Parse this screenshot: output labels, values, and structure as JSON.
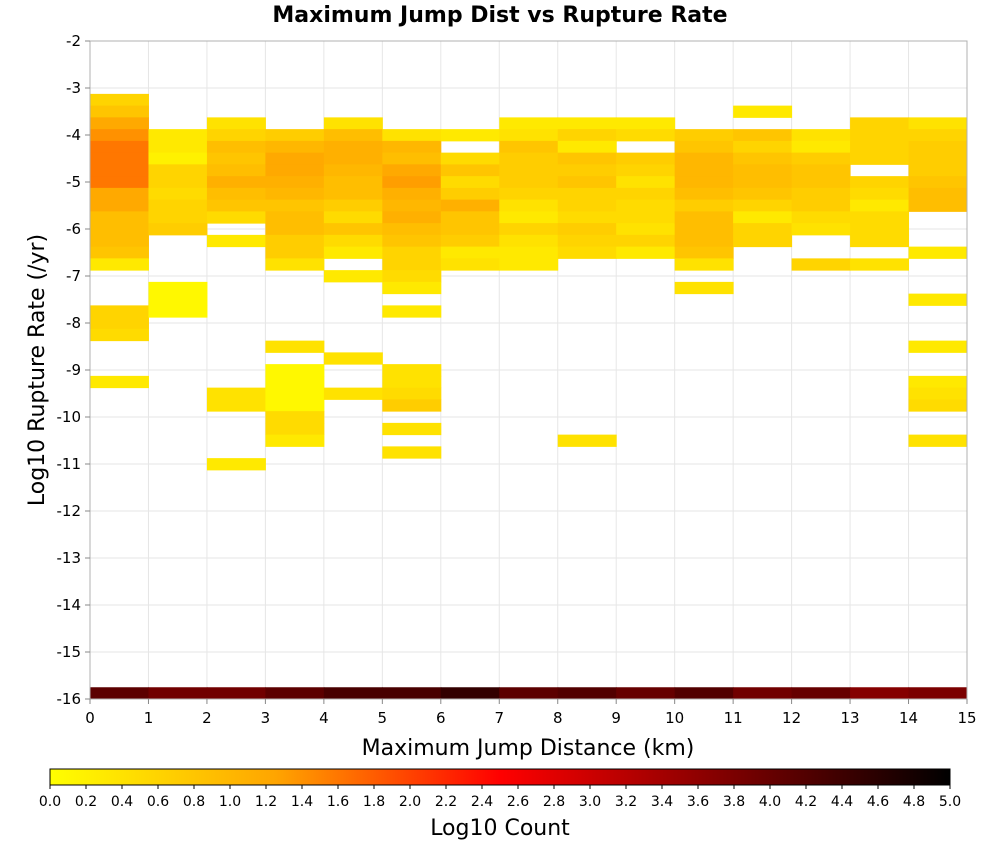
{
  "chart_data": {
    "type": "heatmap",
    "title": "Maximum Jump Dist vs Rupture Rate",
    "xlabel": "Maximum Jump Distance (km)",
    "ylabel": "Log10 Rupture Rate (/yr)",
    "xlim": [
      0,
      15
    ],
    "ylim": [
      -16,
      -2
    ],
    "x_ticks": [
      "0",
      "1",
      "2",
      "3",
      "4",
      "5",
      "6",
      "7",
      "8",
      "9",
      "10",
      "11",
      "12",
      "13",
      "14",
      "15"
    ],
    "y_ticks": [
      "-2",
      "-3",
      "-4",
      "-5",
      "-6",
      "-7",
      "-8",
      "-9",
      "-10",
      "-11",
      "-12",
      "-13",
      "-14",
      "-15",
      "-16"
    ],
    "x_bin_width": 1,
    "y_bin_height": 0.25,
    "grid": true,
    "colorbar": {
      "label": "Log10 Count",
      "range": [
        0,
        5
      ],
      "ticks": [
        "0.0",
        "0.2",
        "0.4",
        "0.6",
        "0.8",
        "1.0",
        "1.2",
        "1.4",
        "1.6",
        "1.8",
        "2.0",
        "2.2",
        "2.4",
        "2.6",
        "2.8",
        "3.0",
        "3.2",
        "3.4",
        "3.6",
        "3.8",
        "4.0",
        "4.2",
        "4.4",
        "4.6",
        "4.8",
        "5.0"
      ],
      "colormap": [
        "#ffff00",
        "#ffa500",
        "#ff0000",
        "#800000",
        "#000000"
      ]
    },
    "cells": [
      {
        "x": 0,
        "y": -3.25,
        "v": 0.6
      },
      {
        "x": 0,
        "y": -3.5,
        "v": 0.8
      },
      {
        "x": 0,
        "y": -3.75,
        "v": 1.2
      },
      {
        "x": 0,
        "y": -4.0,
        "v": 1.4
      },
      {
        "x": 0,
        "y": -4.25,
        "v": 1.6
      },
      {
        "x": 0,
        "y": -4.5,
        "v": 1.6
      },
      {
        "x": 0,
        "y": -4.75,
        "v": 1.6
      },
      {
        "x": 0,
        "y": -5.0,
        "v": 1.6
      },
      {
        "x": 0,
        "y": -5.25,
        "v": 1.2
      },
      {
        "x": 0,
        "y": -5.5,
        "v": 1.2
      },
      {
        "x": 0,
        "y": -5.75,
        "v": 0.9
      },
      {
        "x": 0,
        "y": -6.0,
        "v": 0.9
      },
      {
        "x": 0,
        "y": -6.25,
        "v": 0.9
      },
      {
        "x": 0,
        "y": -6.5,
        "v": 0.8
      },
      {
        "x": 0,
        "y": -6.75,
        "v": 0.3
      },
      {
        "x": 0,
        "y": -7.75,
        "v": 0.6
      },
      {
        "x": 0,
        "y": -8.0,
        "v": 0.6
      },
      {
        "x": 0,
        "y": -8.25,
        "v": 0.5
      },
      {
        "x": 0,
        "y": -9.25,
        "v": 0.3
      },
      {
        "x": 1,
        "y": -4.0,
        "v": 0.3
      },
      {
        "x": 1,
        "y": -4.25,
        "v": 0.3
      },
      {
        "x": 1,
        "y": -4.5,
        "v": 0.2
      },
      {
        "x": 1,
        "y": -4.75,
        "v": 0.6
      },
      {
        "x": 1,
        "y": -5.0,
        "v": 0.6
      },
      {
        "x": 1,
        "y": -5.25,
        "v": 0.5
      },
      {
        "x": 1,
        "y": -5.5,
        "v": 0.6
      },
      {
        "x": 1,
        "y": -5.75,
        "v": 0.6
      },
      {
        "x": 1,
        "y": -6.0,
        "v": 0.7
      },
      {
        "x": 1,
        "y": -7.25,
        "v": 0.1
      },
      {
        "x": 1,
        "y": -7.5,
        "v": 0.1
      },
      {
        "x": 1,
        "y": -7.75,
        "v": 0.1
      },
      {
        "x": 2,
        "y": -3.75,
        "v": 0.4
      },
      {
        "x": 2,
        "y": -4.0,
        "v": 0.6
      },
      {
        "x": 2,
        "y": -4.25,
        "v": 0.9
      },
      {
        "x": 2,
        "y": -4.5,
        "v": 0.8
      },
      {
        "x": 2,
        "y": -4.75,
        "v": 0.9
      },
      {
        "x": 2,
        "y": -5.0,
        "v": 1.1
      },
      {
        "x": 2,
        "y": -5.25,
        "v": 0.9
      },
      {
        "x": 2,
        "y": -5.5,
        "v": 0.8
      },
      {
        "x": 2,
        "y": -5.75,
        "v": 0.5
      },
      {
        "x": 2,
        "y": -6.25,
        "v": 0.3
      },
      {
        "x": 2,
        "y": -9.5,
        "v": 0.4
      },
      {
        "x": 2,
        "y": -9.75,
        "v": 0.4
      },
      {
        "x": 2,
        "y": -11.0,
        "v": 0.3
      },
      {
        "x": 3,
        "y": -4.0,
        "v": 0.7
      },
      {
        "x": 3,
        "y": -4.25,
        "v": 1.0
      },
      {
        "x": 3,
        "y": -4.5,
        "v": 1.2
      },
      {
        "x": 3,
        "y": -4.75,
        "v": 1.2
      },
      {
        "x": 3,
        "y": -5.0,
        "v": 1.1
      },
      {
        "x": 3,
        "y": -5.25,
        "v": 1.0
      },
      {
        "x": 3,
        "y": -5.5,
        "v": 0.8
      },
      {
        "x": 3,
        "y": -5.75,
        "v": 0.9
      },
      {
        "x": 3,
        "y": -6.0,
        "v": 0.9
      },
      {
        "x": 3,
        "y": -6.25,
        "v": 0.7
      },
      {
        "x": 3,
        "y": -6.5,
        "v": 0.7
      },
      {
        "x": 3,
        "y": -6.75,
        "v": 0.4
      },
      {
        "x": 3,
        "y": -8.5,
        "v": 0.4
      },
      {
        "x": 3,
        "y": -9.0,
        "v": 0.1
      },
      {
        "x": 3,
        "y": -9.25,
        "v": 0.1
      },
      {
        "x": 3,
        "y": -9.5,
        "v": 0.1
      },
      {
        "x": 3,
        "y": -9.75,
        "v": 0.1
      },
      {
        "x": 3,
        "y": -10.0,
        "v": 0.5
      },
      {
        "x": 3,
        "y": -10.25,
        "v": 0.5
      },
      {
        "x": 3,
        "y": -10.5,
        "v": 0.3
      },
      {
        "x": 4,
        "y": -3.75,
        "v": 0.4
      },
      {
        "x": 4,
        "y": -4.0,
        "v": 0.9
      },
      {
        "x": 4,
        "y": -4.25,
        "v": 1.1
      },
      {
        "x": 4,
        "y": -4.5,
        "v": 1.1
      },
      {
        "x": 4,
        "y": -4.75,
        "v": 1.0
      },
      {
        "x": 4,
        "y": -5.0,
        "v": 0.9
      },
      {
        "x": 4,
        "y": -5.25,
        "v": 0.9
      },
      {
        "x": 4,
        "y": -5.5,
        "v": 0.7
      },
      {
        "x": 4,
        "y": -5.75,
        "v": 0.5
      },
      {
        "x": 4,
        "y": -6.0,
        "v": 0.8
      },
      {
        "x": 4,
        "y": -6.25,
        "v": 0.5
      },
      {
        "x": 4,
        "y": -6.5,
        "v": 0.3
      },
      {
        "x": 4,
        "y": -7.0,
        "v": 0.3
      },
      {
        "x": 4,
        "y": -8.75,
        "v": 0.4
      },
      {
        "x": 4,
        "y": -9.5,
        "v": 0.4
      },
      {
        "x": 5,
        "y": -4.0,
        "v": 0.4
      },
      {
        "x": 5,
        "y": -4.25,
        "v": 1.0
      },
      {
        "x": 5,
        "y": -4.5,
        "v": 0.9
      },
      {
        "x": 5,
        "y": -4.75,
        "v": 1.2
      },
      {
        "x": 5,
        "y": -5.0,
        "v": 1.3
      },
      {
        "x": 5,
        "y": -5.25,
        "v": 1.1
      },
      {
        "x": 5,
        "y": -5.5,
        "v": 1.0
      },
      {
        "x": 5,
        "y": -5.75,
        "v": 1.1
      },
      {
        "x": 5,
        "y": -6.0,
        "v": 0.9
      },
      {
        "x": 5,
        "y": -6.25,
        "v": 0.8
      },
      {
        "x": 5,
        "y": -6.5,
        "v": 0.6
      },
      {
        "x": 5,
        "y": -6.75,
        "v": 0.6
      },
      {
        "x": 5,
        "y": -7.0,
        "v": 0.5
      },
      {
        "x": 5,
        "y": -7.25,
        "v": 0.3
      },
      {
        "x": 5,
        "y": -7.75,
        "v": 0.3
      },
      {
        "x": 5,
        "y": -9.0,
        "v": 0.4
      },
      {
        "x": 5,
        "y": -9.25,
        "v": 0.4
      },
      {
        "x": 5,
        "y": -9.5,
        "v": 0.5
      },
      {
        "x": 5,
        "y": -9.75,
        "v": 0.7
      },
      {
        "x": 5,
        "y": -10.25,
        "v": 0.4
      },
      {
        "x": 5,
        "y": -10.75,
        "v": 0.4
      },
      {
        "x": 6,
        "y": -4.0,
        "v": 0.3
      },
      {
        "x": 6,
        "y": -4.5,
        "v": 0.5
      },
      {
        "x": 6,
        "y": -4.75,
        "v": 0.8
      },
      {
        "x": 6,
        "y": -5.0,
        "v": 0.5
      },
      {
        "x": 6,
        "y": -5.25,
        "v": 0.7
      },
      {
        "x": 6,
        "y": -5.5,
        "v": 1.1
      },
      {
        "x": 6,
        "y": -5.75,
        "v": 0.8
      },
      {
        "x": 6,
        "y": -6.0,
        "v": 0.8
      },
      {
        "x": 6,
        "y": -6.25,
        "v": 0.7
      },
      {
        "x": 6,
        "y": -6.5,
        "v": 0.3
      },
      {
        "x": 6,
        "y": -6.75,
        "v": 0.4
      },
      {
        "x": 7,
        "y": -3.75,
        "v": 0.3
      },
      {
        "x": 7,
        "y": -4.0,
        "v": 0.4
      },
      {
        "x": 7,
        "y": -4.25,
        "v": 0.8
      },
      {
        "x": 7,
        "y": -4.5,
        "v": 0.7
      },
      {
        "x": 7,
        "y": -4.75,
        "v": 0.7
      },
      {
        "x": 7,
        "y": -5.0,
        "v": 0.7
      },
      {
        "x": 7,
        "y": -5.25,
        "v": 0.6
      },
      {
        "x": 7,
        "y": -5.5,
        "v": 0.4
      },
      {
        "x": 7,
        "y": -5.75,
        "v": 0.3
      },
      {
        "x": 7,
        "y": -6.0,
        "v": 0.6
      },
      {
        "x": 7,
        "y": -6.25,
        "v": 0.4
      },
      {
        "x": 7,
        "y": -6.5,
        "v": 0.3
      },
      {
        "x": 7,
        "y": -6.75,
        "v": 0.3
      },
      {
        "x": 8,
        "y": -3.75,
        "v": 0.3
      },
      {
        "x": 8,
        "y": -4.0,
        "v": 0.6
      },
      {
        "x": 8,
        "y": -4.25,
        "v": 0.3
      },
      {
        "x": 8,
        "y": -4.5,
        "v": 0.8
      },
      {
        "x": 8,
        "y": -4.75,
        "v": 0.7
      },
      {
        "x": 8,
        "y": -5.0,
        "v": 0.8
      },
      {
        "x": 8,
        "y": -5.25,
        "v": 0.6
      },
      {
        "x": 8,
        "y": -5.5,
        "v": 0.6
      },
      {
        "x": 8,
        "y": -5.75,
        "v": 0.5
      },
      {
        "x": 8,
        "y": -6.0,
        "v": 0.7
      },
      {
        "x": 8,
        "y": -6.25,
        "v": 0.6
      },
      {
        "x": 8,
        "y": -6.5,
        "v": 0.5
      },
      {
        "x": 8,
        "y": -10.5,
        "v": 0.4
      },
      {
        "x": 9,
        "y": -3.75,
        "v": 0.3
      },
      {
        "x": 9,
        "y": -4.0,
        "v": 0.5
      },
      {
        "x": 9,
        "y": -4.5,
        "v": 0.7
      },
      {
        "x": 9,
        "y": -4.75,
        "v": 0.6
      },
      {
        "x": 9,
        "y": -5.0,
        "v": 0.4
      },
      {
        "x": 9,
        "y": -5.25,
        "v": 0.6
      },
      {
        "x": 9,
        "y": -5.5,
        "v": 0.5
      },
      {
        "x": 9,
        "y": -5.75,
        "v": 0.5
      },
      {
        "x": 9,
        "y": -6.0,
        "v": 0.4
      },
      {
        "x": 9,
        "y": -6.25,
        "v": 0.6
      },
      {
        "x": 9,
        "y": -6.5,
        "v": 0.3
      },
      {
        "x": 10,
        "y": -4.0,
        "v": 0.7
      },
      {
        "x": 10,
        "y": -4.25,
        "v": 0.8
      },
      {
        "x": 10,
        "y": -4.5,
        "v": 1.0
      },
      {
        "x": 10,
        "y": -4.75,
        "v": 1.0
      },
      {
        "x": 10,
        "y": -5.0,
        "v": 1.0
      },
      {
        "x": 10,
        "y": -5.25,
        "v": 0.9
      },
      {
        "x": 10,
        "y": -5.5,
        "v": 0.7
      },
      {
        "x": 10,
        "y": -5.75,
        "v": 0.9
      },
      {
        "x": 10,
        "y": -6.0,
        "v": 0.9
      },
      {
        "x": 10,
        "y": -6.25,
        "v": 0.9
      },
      {
        "x": 10,
        "y": -6.5,
        "v": 0.8
      },
      {
        "x": 10,
        "y": -6.75,
        "v": 0.4
      },
      {
        "x": 10,
        "y": -7.25,
        "v": 0.4
      },
      {
        "x": 11,
        "y": -3.5,
        "v": 0.3
      },
      {
        "x": 11,
        "y": -4.0,
        "v": 0.8
      },
      {
        "x": 11,
        "y": -4.25,
        "v": 0.6
      },
      {
        "x": 11,
        "y": -4.5,
        "v": 0.8
      },
      {
        "x": 11,
        "y": -4.75,
        "v": 0.9
      },
      {
        "x": 11,
        "y": -5.0,
        "v": 0.9
      },
      {
        "x": 11,
        "y": -5.25,
        "v": 0.8
      },
      {
        "x": 11,
        "y": -5.5,
        "v": 0.6
      },
      {
        "x": 11,
        "y": -5.75,
        "v": 0.3
      },
      {
        "x": 11,
        "y": -6.0,
        "v": 0.6
      },
      {
        "x": 11,
        "y": -6.25,
        "v": 0.6
      },
      {
        "x": 12,
        "y": -4.0,
        "v": 0.4
      },
      {
        "x": 12,
        "y": -4.25,
        "v": 0.3
      },
      {
        "x": 12,
        "y": -4.5,
        "v": 0.7
      },
      {
        "x": 12,
        "y": -4.75,
        "v": 0.8
      },
      {
        "x": 12,
        "y": -5.0,
        "v": 0.8
      },
      {
        "x": 12,
        "y": -5.25,
        "v": 0.7
      },
      {
        "x": 12,
        "y": -5.5,
        "v": 0.7
      },
      {
        "x": 12,
        "y": -5.75,
        "v": 0.5
      },
      {
        "x": 12,
        "y": -6.0,
        "v": 0.4
      },
      {
        "x": 12,
        "y": -6.75,
        "v": 0.6
      },
      {
        "x": 13,
        "y": -3.75,
        "v": 0.6
      },
      {
        "x": 13,
        "y": -4.0,
        "v": 0.6
      },
      {
        "x": 13,
        "y": -4.25,
        "v": 0.6
      },
      {
        "x": 13,
        "y": -4.5,
        "v": 0.6
      },
      {
        "x": 13,
        "y": -5.0,
        "v": 0.6
      },
      {
        "x": 13,
        "y": -5.25,
        "v": 0.5
      },
      {
        "x": 13,
        "y": -5.5,
        "v": 0.3
      },
      {
        "x": 13,
        "y": -5.75,
        "v": 0.5
      },
      {
        "x": 13,
        "y": -6.0,
        "v": 0.5
      },
      {
        "x": 13,
        "y": -6.25,
        "v": 0.5
      },
      {
        "x": 13,
        "y": -6.75,
        "v": 0.4
      },
      {
        "x": 14,
        "y": -3.75,
        "v": 0.4
      },
      {
        "x": 14,
        "y": -4.0,
        "v": 0.6
      },
      {
        "x": 14,
        "y": -4.25,
        "v": 0.7
      },
      {
        "x": 14,
        "y": -4.5,
        "v": 0.7
      },
      {
        "x": 14,
        "y": -4.75,
        "v": 0.7
      },
      {
        "x": 14,
        "y": -5.0,
        "v": 0.8
      },
      {
        "x": 14,
        "y": -5.25,
        "v": 0.9
      },
      {
        "x": 14,
        "y": -5.5,
        "v": 0.9
      },
      {
        "x": 14,
        "y": -6.5,
        "v": 0.3
      },
      {
        "x": 14,
        "y": -7.5,
        "v": 0.3
      },
      {
        "x": 14,
        "y": -8.5,
        "v": 0.3
      },
      {
        "x": 14,
        "y": -9.25,
        "v": 0.3
      },
      {
        "x": 14,
        "y": -9.5,
        "v": 0.4
      },
      {
        "x": 14,
        "y": -9.75,
        "v": 0.5
      },
      {
        "x": 14,
        "y": -10.5,
        "v": 0.4
      }
    ],
    "bottom_row": {
      "y": -15.875,
      "height": 0.25,
      "values": [
        4.1,
        3.9,
        3.9,
        4.1,
        4.3,
        4.3,
        4.5,
        4.1,
        4.2,
        4.0,
        4.2,
        3.9,
        4.0,
        3.7,
        3.8
      ]
    }
  }
}
